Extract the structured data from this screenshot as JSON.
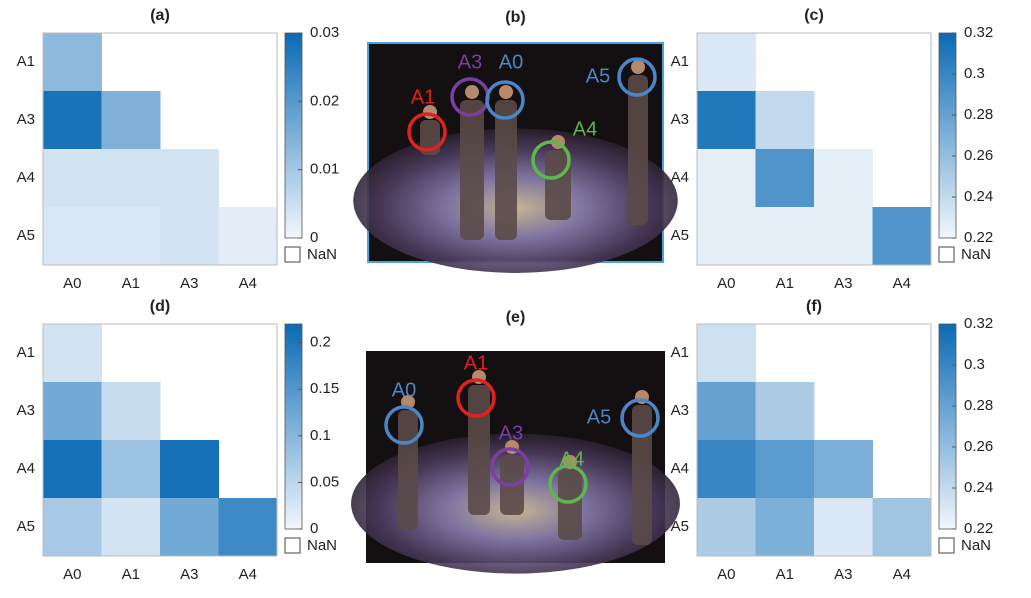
{
  "chart_data": [
    {
      "type": "heatmap",
      "title": "(a)",
      "rows": [
        "A1",
        "A3",
        "A4",
        "A5"
      ],
      "columns": [
        "A0",
        "A1",
        "A3",
        "A4"
      ],
      "values": [
        [
          0.013,
          null,
          null,
          null
        ],
        [
          0.028,
          0.015,
          null,
          null
        ],
        [
          0.004,
          0.004,
          0.004,
          null
        ],
        [
          0.003,
          0.003,
          0.004,
          0.002
        ]
      ],
      "zlim": [
        0,
        0.03
      ],
      "zticks": [
        0,
        0.01,
        0.02,
        0.03
      ],
      "colormap": [
        "#f1f6fc",
        "#0a6ab4"
      ],
      "nan_label": "NaN"
    },
    {
      "type": "heatmap",
      "title": "(c)",
      "rows": [
        "A1",
        "A3",
        "A4",
        "A5"
      ],
      "columns": [
        "A0",
        "A1",
        "A3",
        "A4"
      ],
      "values": [
        [
          0.23,
          null,
          null,
          null
        ],
        [
          0.31,
          0.24,
          null,
          null
        ],
        [
          0.225,
          0.29,
          0.225,
          null
        ],
        [
          0.225,
          0.225,
          0.225,
          0.29
        ]
      ],
      "zlim": [
        0.22,
        0.32
      ],
      "zticks": [
        0.22,
        0.24,
        0.26,
        0.28,
        0.3,
        0.32
      ],
      "colormap": [
        "#f1f6fc",
        "#0a6ab4"
      ],
      "nan_label": "NaN"
    },
    {
      "type": "heatmap",
      "title": "(d)",
      "rows": [
        "A1",
        "A3",
        "A4",
        "A5"
      ],
      "columns": [
        "A0",
        "A1",
        "A3",
        "A4"
      ],
      "values": [
        [
          0.03,
          null,
          null,
          null
        ],
        [
          0.12,
          0.04,
          null,
          null
        ],
        [
          0.21,
          0.08,
          0.21,
          null
        ],
        [
          0.07,
          0.03,
          0.12,
          0.17
        ]
      ],
      "zlim": [
        0,
        0.22
      ],
      "zticks": [
        0,
        0.05,
        0.1,
        0.15,
        0.2
      ],
      "colormap": [
        "#f1f6fc",
        "#0a6ab4"
      ],
      "nan_label": "NaN"
    },
    {
      "type": "heatmap",
      "title": "(f)",
      "rows": [
        "A1",
        "A3",
        "A4",
        "A5"
      ],
      "columns": [
        "A0",
        "A1",
        "A3",
        "A4"
      ],
      "values": [
        [
          0.235,
          null,
          null,
          null
        ],
        [
          0.28,
          0.25,
          null,
          null
        ],
        [
          0.3,
          0.285,
          0.27,
          null
        ],
        [
          0.25,
          0.27,
          0.23,
          0.255
        ]
      ],
      "zlim": [
        0.22,
        0.32
      ],
      "zticks": [
        0.22,
        0.24,
        0.26,
        0.28,
        0.3,
        0.32
      ],
      "colormap": [
        "#f1f6fc",
        "#0a6ab4"
      ],
      "nan_label": "NaN"
    }
  ],
  "photos": [
    {
      "title": "(b)",
      "labels": [
        {
          "text": "A1",
          "color": "#e0221e"
        },
        {
          "text": "A3",
          "color": "#7b3fa0"
        },
        {
          "text": "A0",
          "color": "#4a86c8"
        },
        {
          "text": "A5",
          "color": "#4a86c8"
        },
        {
          "text": "A4",
          "color": "#5cb84a"
        }
      ]
    },
    {
      "title": "(e)",
      "labels": [
        {
          "text": "A0",
          "color": "#4a86c8"
        },
        {
          "text": "A1",
          "color": "#e0221e"
        },
        {
          "text": "A3",
          "color": "#7b3fa0"
        },
        {
          "text": "A5",
          "color": "#4a86c8"
        },
        {
          "text": "A4",
          "color": "#5cb84a"
        }
      ]
    }
  ]
}
